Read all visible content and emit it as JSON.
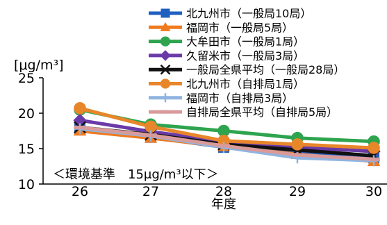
{
  "chart_data": {
    "type": "line",
    "title": "",
    "xlabel": "年度",
    "ylabel": "[μg/m³]",
    "x": [
      "26",
      "27",
      "28",
      "29",
      "30"
    ],
    "ylim": [
      10,
      25
    ],
    "yticks": [
      "10",
      "15",
      "20",
      "25"
    ],
    "grid": false,
    "legend_position": "top-right",
    "annotation": "＜環境基準　15μg/m³以下＞",
    "series": [
      {
        "name": "北九州市（一般局10局）",
        "color": "#1f5fbf",
        "marker": "square",
        "values": [
          17.8,
          16.6,
          15.2,
          14.5,
          13.7
        ]
      },
      {
        "name": "福岡市（一般局5局）",
        "color": "#f07a1e",
        "marker": "triangle",
        "values": [
          17.5,
          16.5,
          15.3,
          14.2,
          13.2
        ]
      },
      {
        "name": "大牟田市（一般局1局）",
        "color": "#2ea44f",
        "marker": "circle",
        "values": [
          20.5,
          18.4,
          17.5,
          16.5,
          16.0
        ]
      },
      {
        "name": "久留米市（一般局3局）",
        "color": "#6a3aa8",
        "marker": "diamond",
        "values": [
          19.0,
          17.4,
          16.0,
          15.2,
          14.6
        ]
      },
      {
        "name": "一般局全県平均（一般局28局）",
        "color": "#111111",
        "marker": "x",
        "values": [
          18.0,
          17.0,
          15.6,
          14.8,
          14.0
        ]
      },
      {
        "name": "北九州市（自排局1局）",
        "color": "#e8862a",
        "marker": "circle",
        "values": [
          20.7,
          18.1,
          16.1,
          15.6,
          15.1
        ]
      },
      {
        "name": "福岡市（自排局3局）",
        "color": "#8fb4e0",
        "marker": "plus",
        "values": [
          17.8,
          16.8,
          15.2,
          13.7,
          13.3
        ]
      },
      {
        "name": "自排局全県平均（自排局5局）",
        "color": "#d99a9a",
        "marker": "dash",
        "values": [
          18.0,
          16.9,
          15.4,
          14.1,
          13.5
        ]
      }
    ]
  }
}
